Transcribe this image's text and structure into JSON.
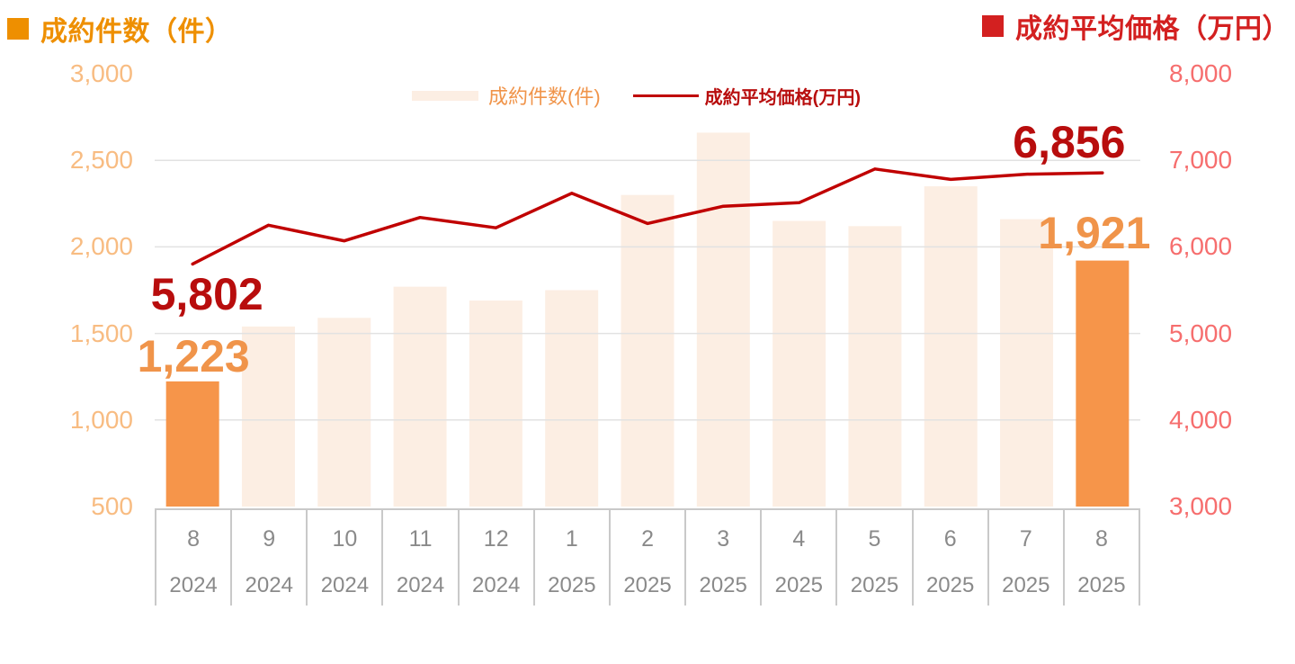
{
  "header": {
    "left_title": "成約件数（件）",
    "right_title": "成約平均価格（万円）"
  },
  "legend": {
    "bars_label": "成約件数(件)",
    "line_label": "成約平均価格(万円)"
  },
  "colors": {
    "title_orange": "#EE8F00",
    "title_red": "#D32020",
    "bar_highlight": "#F6954A",
    "bar_light": "#FCEEE3",
    "line_red": "#C00000",
    "label_red": "#B80D0D",
    "label_orange": "#F0944A",
    "axis_left": "#F8BC82",
    "axis_right": "#F66E6E",
    "cat_gray": "#8A8A8A",
    "grid_line": "#E2E2E2",
    "table_border": "#C9C9C9"
  },
  "chart_data": {
    "type": "bar+line combo",
    "categories": [
      {
        "month": "8",
        "year": "2024"
      },
      {
        "month": "9",
        "year": "2024"
      },
      {
        "month": "10",
        "year": "2024"
      },
      {
        "month": "11",
        "year": "2024"
      },
      {
        "month": "12",
        "year": "2024"
      },
      {
        "month": "1",
        "year": "2025"
      },
      {
        "month": "2",
        "year": "2025"
      },
      {
        "month": "3",
        "year": "2025"
      },
      {
        "month": "4",
        "year": "2025"
      },
      {
        "month": "5",
        "year": "2025"
      },
      {
        "month": "6",
        "year": "2025"
      },
      {
        "month": "7",
        "year": "2025"
      },
      {
        "month": "8",
        "year": "2025"
      }
    ],
    "series": [
      {
        "name": "成約件数(件)",
        "type": "bar",
        "axis": "left",
        "values": [
          1223,
          1540,
          1590,
          1770,
          1690,
          1750,
          2300,
          2660,
          2150,
          2120,
          2350,
          2160,
          1921
        ],
        "highlight_indices": [
          0,
          12
        ],
        "labels": [
          {
            "index": 0,
            "text": "1,223"
          },
          {
            "index": 12,
            "text": "1,921"
          }
        ]
      },
      {
        "name": "成約平均価格(万円)",
        "type": "line",
        "axis": "right",
        "values": [
          5802,
          6250,
          6070,
          6340,
          6220,
          6620,
          6270,
          6470,
          6510,
          6900,
          6780,
          6840,
          6856
        ],
        "labels": [
          {
            "index": 0,
            "text": "5,802"
          },
          {
            "index": 12,
            "text": "6,856"
          }
        ]
      }
    ],
    "left_axis": {
      "min": 500,
      "max": 3000,
      "step": 500,
      "ticks": [
        {
          "value": 3000,
          "label": "3,000"
        },
        {
          "value": 2500,
          "label": "2,500"
        },
        {
          "value": 2000,
          "label": "2,000"
        },
        {
          "value": 1500,
          "label": "1,500"
        },
        {
          "value": 1000,
          "label": "1,000"
        },
        {
          "value": 500,
          "label": "500"
        }
      ]
    },
    "right_axis": {
      "min": 3000,
      "max": 8000,
      "step": 1000,
      "ticks": [
        {
          "value": 8000,
          "label": "8,000"
        },
        {
          "value": 7000,
          "label": "7,000"
        },
        {
          "value": 6000,
          "label": "6,000"
        },
        {
          "value": 5000,
          "label": "5,000"
        },
        {
          "value": 4000,
          "label": "4,000"
        },
        {
          "value": 3000,
          "label": "3,000"
        }
      ]
    },
    "grid": "horizontal gridlines at left-axis steps, visible over light bars, hidden behind highlighted bars",
    "legend_position": "top-center"
  }
}
